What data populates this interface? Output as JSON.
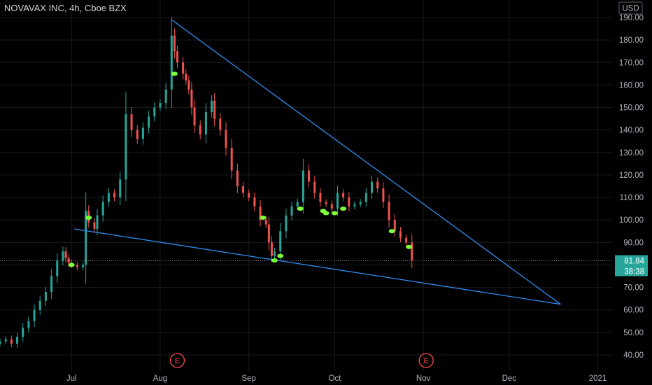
{
  "header": {
    "title": "NOVAVAX INC, 4h, Cboe BZX"
  },
  "colors": {
    "background": "#000000",
    "up": "#26a69a",
    "down": "#ef5350",
    "trendline": "#2f8cf0",
    "marker": "#7cff3a",
    "earnings": "#ff4a4a",
    "price_label": "#26a69a",
    "grid": "#1a1a1a",
    "text": "#b2b5be"
  },
  "chart_data": {
    "type": "candlestick",
    "title": "NOVAVAX INC, 4h, Cboe BZX",
    "currency": "USD",
    "ylim": [
      35,
      195
    ],
    "y_ticks": [
      "40.00",
      "50.00",
      "60.00",
      "70.00",
      "80.00",
      "90.00",
      "100.00",
      "110.00",
      "120.00",
      "130.00",
      "140.00",
      "150.00",
      "160.00",
      "170.00",
      "180.00",
      "190.00"
    ],
    "x_ticks": [
      {
        "label": "Jul",
        "x": "2020-07-01"
      },
      {
        "label": "Aug",
        "x": "2020-08-01"
      },
      {
        "label": "Sep",
        "x": "2020-09-01"
      },
      {
        "label": "Oct",
        "x": "2020-10-01"
      },
      {
        "label": "Nov",
        "x": "2020-11-01"
      },
      {
        "label": "Dec",
        "x": "2020-12-01"
      },
      {
        "label": "2021",
        "x": "2021-01-01"
      }
    ],
    "xlim": [
      "2020-06-06",
      "2021-01-06"
    ],
    "last_price": "81.84",
    "countdown": "38:38",
    "closes": [
      [
        "2020-06-06",
        46
      ],
      [
        "2020-06-08",
        47
      ],
      [
        "2020-06-10",
        45
      ],
      [
        "2020-06-12",
        48
      ],
      [
        "2020-06-14",
        52
      ],
      [
        "2020-06-16",
        55
      ],
      [
        "2020-06-18",
        60
      ],
      [
        "2020-06-20",
        64
      ],
      [
        "2020-06-22",
        68
      ],
      [
        "2020-06-24",
        75
      ],
      [
        "2020-06-26",
        82
      ],
      [
        "2020-06-28",
        86
      ],
      [
        "2020-06-29",
        83
      ],
      [
        "2020-06-30",
        81
      ],
      [
        "2020-07-01",
        80
      ],
      [
        "2020-07-03",
        79
      ],
      [
        "2020-07-05",
        80
      ],
      [
        "2020-07-06",
        104
      ],
      [
        "2020-07-07",
        99
      ],
      [
        "2020-07-09",
        96
      ],
      [
        "2020-07-10",
        102
      ],
      [
        "2020-07-12",
        108
      ],
      [
        "2020-07-14",
        112
      ],
      [
        "2020-07-16",
        110
      ],
      [
        "2020-07-18",
        118
      ],
      [
        "2020-07-20",
        147
      ],
      [
        "2020-07-22",
        140
      ],
      [
        "2020-07-24",
        136
      ],
      [
        "2020-07-26",
        141
      ],
      [
        "2020-07-28",
        146
      ],
      [
        "2020-07-30",
        150
      ],
      [
        "2020-08-01",
        152
      ],
      [
        "2020-08-03",
        158
      ],
      [
        "2020-08-05",
        182
      ],
      [
        "2020-08-06",
        175
      ],
      [
        "2020-08-07",
        170
      ],
      [
        "2020-08-09",
        165
      ],
      [
        "2020-08-10",
        162
      ],
      [
        "2020-08-11",
        158
      ],
      [
        "2020-08-12",
        150
      ],
      [
        "2020-08-13",
        142
      ],
      [
        "2020-08-15",
        138
      ],
      [
        "2020-08-17",
        148
      ],
      [
        "2020-08-19",
        153
      ],
      [
        "2020-08-20",
        145
      ],
      [
        "2020-08-22",
        140
      ],
      [
        "2020-08-24",
        132
      ],
      [
        "2020-08-26",
        122
      ],
      [
        "2020-08-28",
        115
      ],
      [
        "2020-08-30",
        112
      ],
      [
        "2020-09-01",
        110
      ],
      [
        "2020-09-03",
        106
      ],
      [
        "2020-09-05",
        100
      ],
      [
        "2020-09-07",
        98
      ],
      [
        "2020-09-08",
        90
      ],
      [
        "2020-09-09",
        84
      ],
      [
        "2020-09-10",
        86
      ],
      [
        "2020-09-12",
        95
      ],
      [
        "2020-09-14",
        102
      ],
      [
        "2020-09-16",
        106
      ],
      [
        "2020-09-18",
        108
      ],
      [
        "2020-09-20",
        122
      ],
      [
        "2020-09-22",
        117
      ],
      [
        "2020-09-24",
        112
      ],
      [
        "2020-09-26",
        108
      ],
      [
        "2020-09-28",
        107
      ],
      [
        "2020-09-30",
        105
      ],
      [
        "2020-10-02",
        112
      ],
      [
        "2020-10-04",
        110
      ],
      [
        "2020-10-06",
        106
      ],
      [
        "2020-10-08",
        107
      ],
      [
        "2020-10-10",
        108
      ],
      [
        "2020-10-12",
        112
      ],
      [
        "2020-10-14",
        117
      ],
      [
        "2020-10-16",
        114
      ],
      [
        "2020-10-18",
        108
      ],
      [
        "2020-10-20",
        100
      ],
      [
        "2020-10-22",
        95
      ],
      [
        "2020-10-24",
        92
      ],
      [
        "2020-10-26",
        90
      ],
      [
        "2020-10-28",
        82
      ]
    ],
    "markers": [
      [
        "2020-07-01",
        80
      ],
      [
        "2020-07-07",
        101
      ],
      [
        "2020-08-06",
        165
      ],
      [
        "2020-09-06",
        101
      ],
      [
        "2020-09-10",
        82
      ],
      [
        "2020-09-12",
        84
      ],
      [
        "2020-09-19",
        105
      ],
      [
        "2020-09-27",
        104
      ],
      [
        "2020-09-28",
        103
      ],
      [
        "2020-10-01",
        103
      ],
      [
        "2020-10-04",
        105
      ],
      [
        "2020-10-21",
        95
      ],
      [
        "2020-10-27",
        88
      ]
    ],
    "trendlines": [
      {
        "from": [
          "2020-08-05",
          189
        ],
        "to": [
          "2020-12-19",
          62.5
        ]
      },
      {
        "from": [
          "2020-07-02",
          96
        ],
        "to": [
          "2020-12-19",
          62.5
        ]
      }
    ],
    "earnings": [
      {
        "label": "E",
        "x": "2020-08-07"
      },
      {
        "label": "E",
        "x": "2020-11-02"
      }
    ]
  }
}
